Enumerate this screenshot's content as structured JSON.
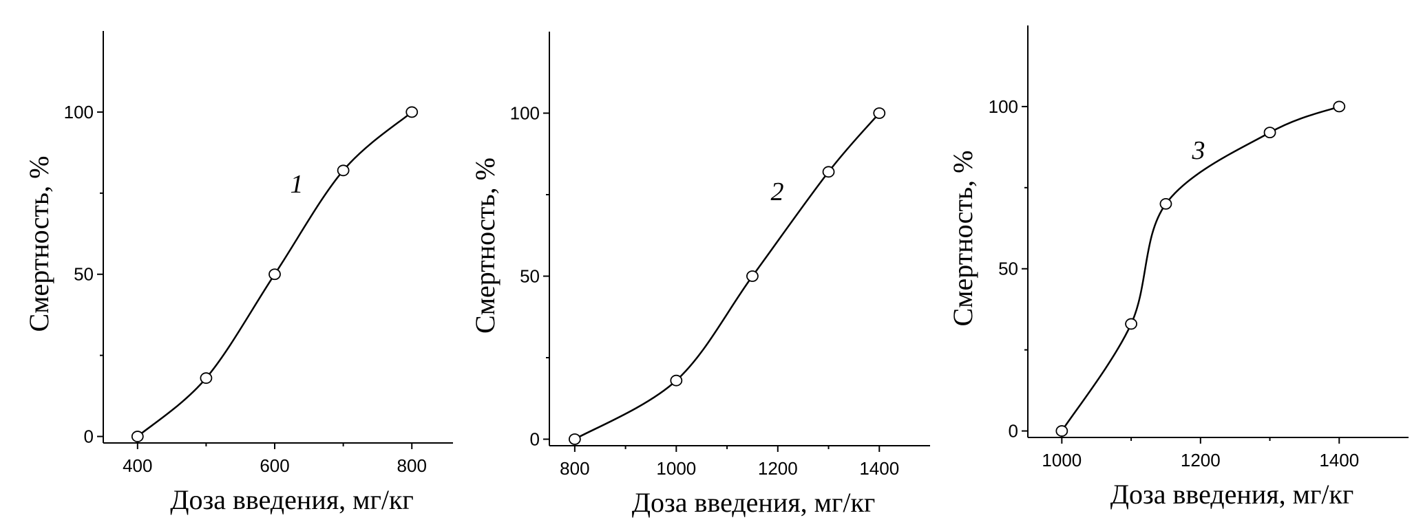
{
  "chart_data": [
    {
      "type": "line",
      "xlabel": "Доза введения, мг/кг",
      "ylabel": "Смертность, %",
      "xlim": [
        350,
        860
      ],
      "ylim": [
        -2,
        125
      ],
      "xticks": [
        400,
        600,
        800
      ],
      "xminor": [
        500,
        700
      ],
      "yticks": [
        0,
        50,
        100
      ],
      "yminor": [
        25,
        75
      ],
      "grid": false,
      "series": [
        {
          "label": "1",
          "x": [
            400,
            500,
            600,
            700,
            800
          ],
          "y": [
            0,
            18,
            50,
            82,
            100
          ],
          "marker": "open-circle",
          "color": "#000000"
        }
      ]
    },
    {
      "type": "line",
      "xlabel": "Доза введения, мг/кг",
      "ylabel": "Смертность, %",
      "xlim": [
        750,
        1500
      ],
      "ylim": [
        -2,
        125
      ],
      "xticks": [
        800,
        1000,
        1200,
        1400
      ],
      "xminor": [
        900,
        1100,
        1300
      ],
      "yticks": [
        0,
        50,
        100
      ],
      "yminor": [
        25,
        75
      ],
      "grid": false,
      "series": [
        {
          "label": "2",
          "x": [
            800,
            1000,
            1150,
            1300,
            1400
          ],
          "y": [
            0,
            18,
            50,
            82,
            100
          ],
          "marker": "open-circle",
          "color": "#000000"
        }
      ]
    },
    {
      "type": "line",
      "xlabel": "Доза введения, мг/кг",
      "ylabel": "Смертность, %",
      "xlim": [
        951,
        1500
      ],
      "ylim": [
        -2,
        125
      ],
      "xticks": [
        1000,
        1200,
        1400
      ],
      "xminor": [
        1100,
        1300
      ],
      "yticks": [
        0,
        50,
        100
      ],
      "yminor": [
        25,
        75
      ],
      "grid": false,
      "series": [
        {
          "label": "3",
          "x": [
            1000,
            1100,
            1150,
            1300,
            1400
          ],
          "y": [
            0,
            33,
            70,
            92,
            100
          ],
          "marker": "open-circle",
          "color": "#000000"
        }
      ]
    }
  ]
}
